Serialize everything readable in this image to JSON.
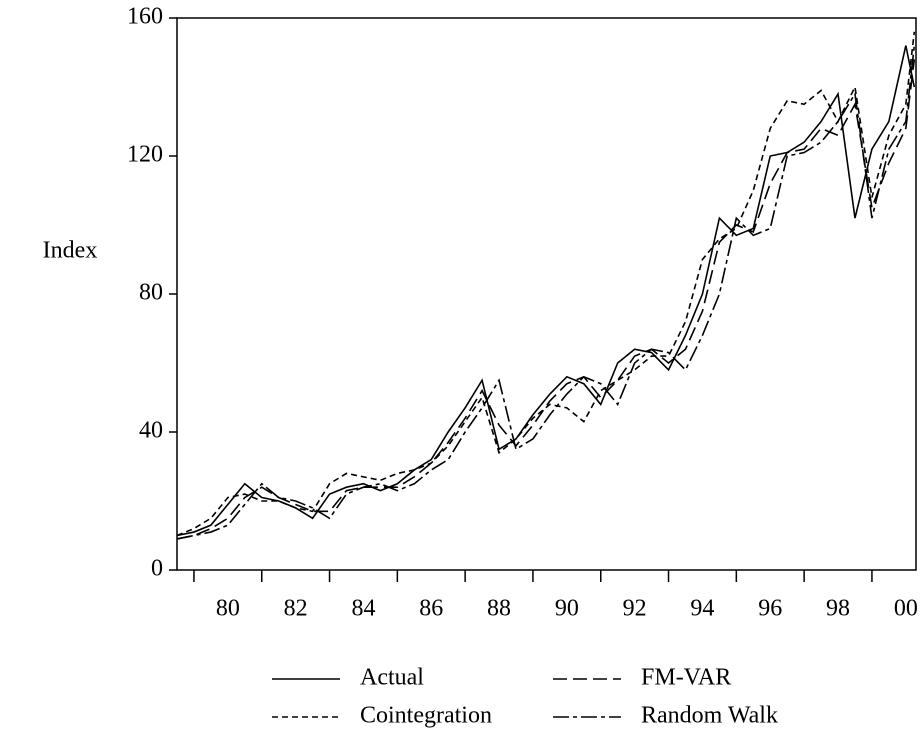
{
  "chart_data": {
    "type": "line",
    "y_label": "Index",
    "x": [
      1978.5,
      1979,
      1979.5,
      1980,
      1980.5,
      1981,
      1981.5,
      1982,
      1982.5,
      1983,
      1983.5,
      1984,
      1984.5,
      1985,
      1985.5,
      1986,
      1986.5,
      1987,
      1987.5,
      1988,
      1988.5,
      1989,
      1989.5,
      1990,
      1990.5,
      1991,
      1991.5,
      1992,
      1992.5,
      1993,
      1993.5,
      1994,
      1994.5,
      1995,
      1995.5,
      1996,
      1996.5,
      1997,
      1997.5,
      1998,
      1998.5,
      1999,
      1999.5,
      2000,
      2000.25
    ],
    "series": [
      {
        "name": "Actual",
        "color": "#000000",
        "dash": "none",
        "values": [
          10,
          11,
          13,
          19,
          25,
          21,
          20,
          18,
          15,
          22,
          24,
          25,
          23,
          25,
          29,
          32,
          40,
          47,
          55,
          35,
          38,
          45,
          51,
          56,
          54,
          48,
          60,
          64,
          63,
          58,
          68,
          80,
          102,
          97,
          99,
          120,
          121,
          124,
          130,
          138,
          102,
          122,
          130,
          152,
          140
        ]
      },
      {
        "name": "FM-VAR",
        "color": "#000000",
        "dash": "14,6",
        "values": [
          9,
          10,
          12,
          15,
          21,
          24,
          21,
          19,
          17,
          17,
          23,
          24,
          24,
          24,
          27,
          31,
          37,
          44,
          52,
          42,
          36,
          42,
          49,
          54,
          56,
          50,
          55,
          62,
          64,
          60,
          64,
          75,
          95,
          100,
          98,
          112,
          121,
          122,
          128,
          126,
          135,
          105,
          118,
          128,
          148
        ]
      },
      {
        "name": "Cointegration",
        "color": "#000000",
        "dash": "6,4",
        "values": [
          10,
          12,
          15,
          21,
          22,
          20,
          20,
          18,
          17,
          25,
          28,
          27,
          26,
          28,
          29,
          31,
          36,
          43,
          50,
          34,
          38,
          44,
          48,
          47,
          43,
          52,
          55,
          58,
          62,
          62,
          72,
          90,
          96,
          99,
          110,
          128,
          136,
          135,
          139,
          130,
          140,
          108,
          126,
          135,
          156
        ]
      },
      {
        "name": "Random Walk",
        "color": "#000000",
        "dash": "16,4,4,4",
        "values": [
          9,
          10,
          11,
          13,
          19,
          25,
          21,
          20,
          18,
          15,
          22,
          24,
          25,
          23,
          25,
          29,
          32,
          40,
          47,
          55,
          35,
          38,
          45,
          51,
          56,
          54,
          48,
          60,
          64,
          63,
          58,
          68,
          80,
          102,
          97,
          99,
          120,
          121,
          124,
          130,
          138,
          102,
          122,
          130,
          152
        ]
      }
    ],
    "xlim": [
      1978.5,
      2000.3
    ],
    "xticks": [
      {
        "value": 1980,
        "label": "80"
      },
      {
        "value": 1982,
        "label": "82"
      },
      {
        "value": 1984,
        "label": "84"
      },
      {
        "value": 1986,
        "label": "86"
      },
      {
        "value": 1988,
        "label": "88"
      },
      {
        "value": 1990,
        "label": "90"
      },
      {
        "value": 1992,
        "label": "92"
      },
      {
        "value": 1994,
        "label": "94"
      },
      {
        "value": 1996,
        "label": "96"
      },
      {
        "value": 1998,
        "label": "98"
      },
      {
        "value": 2000,
        "label": "00"
      }
    ],
    "xtick_marks": [
      1979,
      1981,
      1983,
      1985,
      1987,
      1989,
      1991,
      1993,
      1995,
      1997,
      1999
    ],
    "ylim": [
      0,
      160
    ],
    "yticks": [
      0,
      40,
      80,
      120,
      160
    ],
    "grid": false,
    "legend": "bottom"
  }
}
